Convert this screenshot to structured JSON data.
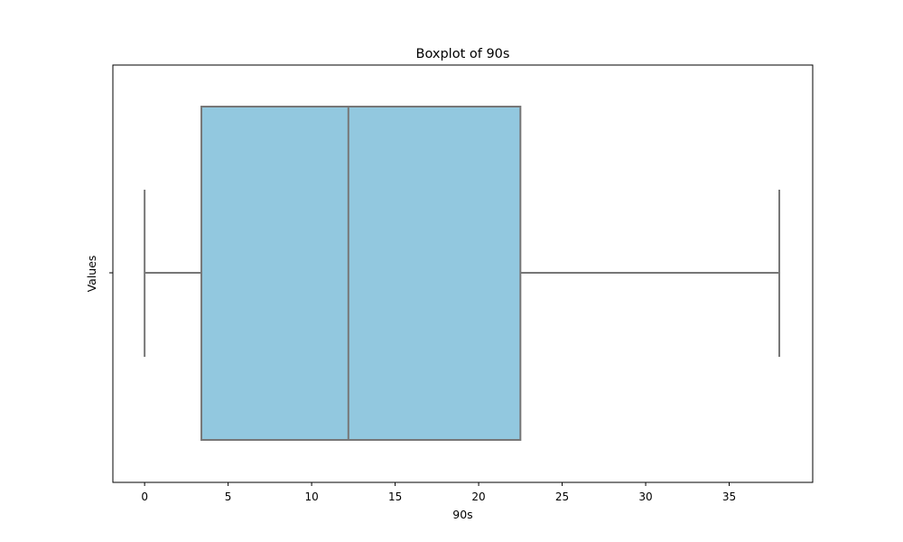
{
  "chart_data": {
    "type": "box",
    "title": "Boxplot of 90s",
    "xlabel": "90s",
    "ylabel": "Values",
    "xlim": [
      -1.9,
      40.0
    ],
    "xticks": [
      0,
      5,
      10,
      15,
      20,
      25,
      30,
      35
    ],
    "grid": false,
    "series": [
      {
        "whisker_low": 0,
        "q1": 3.4,
        "median": 12.2,
        "q3": 22.5,
        "whisker_high": 38
      }
    ],
    "colors": {
      "box_fill": "#92c8df",
      "box_line": "#777777",
      "axes": "#000000"
    }
  }
}
